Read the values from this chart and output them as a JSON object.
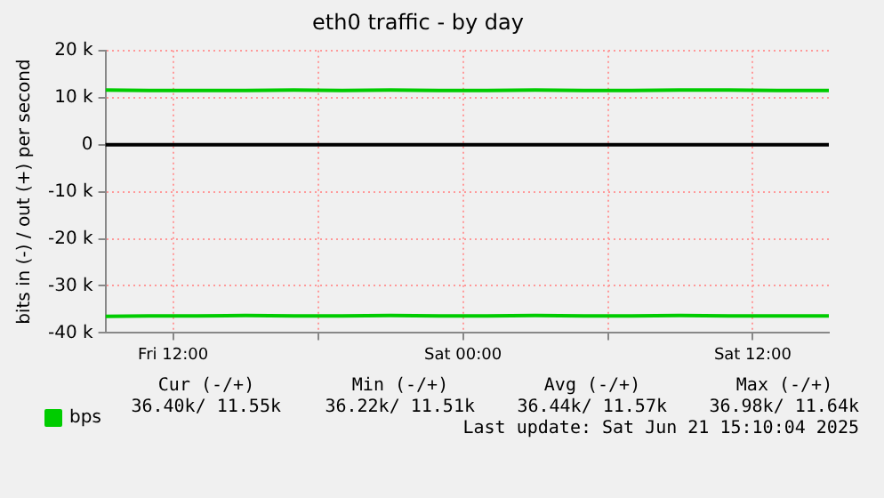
{
  "chart_data": {
    "type": "line",
    "title": "eth0 traffic - by day",
    "ylabel": "bits in (-) / out (+) per second",
    "x": [
      "2025-06-20T09:12",
      "2025-06-20T11:00",
      "2025-06-20T13:00",
      "2025-06-20T15:00",
      "2025-06-20T17:00",
      "2025-06-20T19:00",
      "2025-06-20T21:00",
      "2025-06-20T23:00",
      "2025-06-21T01:00",
      "2025-06-21T03:00",
      "2025-06-21T05:00",
      "2025-06-21T07:00",
      "2025-06-21T09:00",
      "2025-06-21T11:00",
      "2025-06-21T13:00",
      "2025-06-21T15:09"
    ],
    "series": [
      {
        "name": "bps",
        "color": "#00cc00",
        "values": [
          11600,
          11500,
          11500,
          11500,
          11600,
          11500,
          11600,
          11500,
          11500,
          11600,
          11500,
          11500,
          11600,
          11600,
          11500,
          11500
        ]
      },
      {
        "color": "#00cc00",
        "values": [
          -36500,
          -36400,
          -36400,
          -36300,
          -36400,
          -36400,
          -36300,
          -36400,
          -36400,
          -36300,
          -36400,
          -36400,
          -36300,
          -36400,
          -36400,
          -36400
        ]
      }
    ],
    "xlim": [
      "2025-06-20T09:12",
      "2025-06-21T15:09"
    ],
    "xticks": [
      {
        "value": "2025-06-20T12:00",
        "label": "Fri 12:00"
      },
      {
        "value": "2025-06-20T18:00",
        "label": null
      },
      {
        "value": "2025-06-21T00:00",
        "label": "Sat 00:00"
      },
      {
        "value": "2025-06-21T06:00",
        "label": null
      },
      {
        "value": "2025-06-21T12:00",
        "label": "Sat 12:00"
      }
    ],
    "ylim": [
      -40000,
      20000
    ],
    "yticks": [
      {
        "value": -40000,
        "label": "-40 k"
      },
      {
        "value": -30000,
        "label": "-30 k"
      },
      {
        "value": -20000,
        "label": "-20 k"
      },
      {
        "value": -10000,
        "label": "-10 k"
      },
      {
        "value": 0,
        "label": "0"
      },
      {
        "value": 10000,
        "label": "10 k"
      },
      {
        "value": 20000,
        "label": "20 k"
      }
    ],
    "ref_lines": [
      {
        "axis": "y",
        "value": 0,
        "color": "#000000"
      }
    ],
    "grid": true,
    "legend": "bottom left",
    "marker": "none",
    "line_style": "solid",
    "annotations": [
      "Cur (-/+)",
      "Min (-/+)",
      "Avg (-/+)",
      "Max (-/+)",
      "36.40k/ 11.55k",
      "36.22k/ 11.51k",
      "36.44k/ 11.57k",
      "36.98k/ 11.64k",
      "Last update: Sat Jun 21 15:10:04 2025"
    ]
  }
}
